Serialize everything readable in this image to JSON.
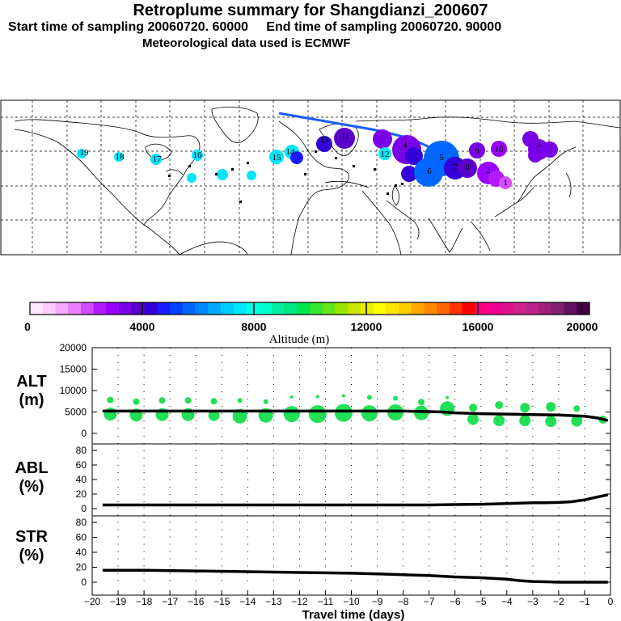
{
  "header": {
    "title": "Retroplume summary for Shangdianzi_200607",
    "start_label": "Start time of sampling 20060720. 60000",
    "end_label": "End time of sampling 20060720. 90000",
    "met_label": "Meteorological data used is ECMWF"
  },
  "colorbar": {
    "label": "Altitude (m)",
    "ticks": [
      "0",
      "4000",
      "8000",
      "12000",
      "16000",
      "20000"
    ],
    "colors": [
      "#ffe6ff",
      "#ffccff",
      "#f4aaff",
      "#e680ff",
      "#d24dff",
      "#b31aff",
      "#9900ff",
      "#7a00e6",
      "#5c00cc",
      "#3300d9",
      "#1a1aff",
      "#0040ff",
      "#0066ff",
      "#0088ff",
      "#00aaff",
      "#00ccff",
      "#00e6ff",
      "#00ffe6",
      "#00ffcc",
      "#00f0a0",
      "#00e680",
      "#00e64d",
      "#33e633",
      "#66e61a",
      "#99e600",
      "#c8e600",
      "#e6f000",
      "#ffff00",
      "#ffe600",
      "#ffcc00",
      "#ffaa00",
      "#ff8800",
      "#ff6600",
      "#ff3300",
      "#ff0000",
      "#ff0080",
      "#f0008c",
      "#e0108c",
      "#d0208c",
      "#c0208c",
      "#a0207c",
      "#80206c",
      "#601060",
      "#400040"
    ]
  },
  "map": {
    "plume_labels": [
      "19",
      "18",
      "17",
      "16",
      "15",
      "14",
      "13",
      "12",
      "11",
      "10",
      "9",
      "8",
      "7",
      "6",
      "5",
      "4",
      "3",
      "2",
      "1"
    ]
  },
  "chart_data": [
    {
      "type": "line",
      "panel": "ALT",
      "ylabel": "ALT (m)",
      "ylabel_line1": "ALT",
      "ylabel_line2": "(m)",
      "ylim": [
        0,
        20000
      ],
      "yticks": [
        0,
        5000,
        10000,
        15000,
        20000
      ],
      "x": [
        -19.6,
        -19,
        -18,
        -17,
        -16,
        -15,
        -14,
        -13,
        -12,
        -11,
        -10,
        -9,
        -8,
        -7,
        -6.5,
        -6,
        -5,
        -4,
        -3,
        -2,
        -1,
        -0.5,
        -0.1
      ],
      "y": [
        5200,
        5200,
        5200,
        5200,
        5200,
        5200,
        5200,
        5200,
        5200,
        5200,
        5200,
        5200,
        5200,
        5100,
        5000,
        4800,
        4600,
        4500,
        4400,
        4300,
        4000,
        3600,
        3000
      ],
      "clusters": [
        {
          "x": -19.3,
          "y": 4500,
          "r": 8
        },
        {
          "x": -19.3,
          "y": 7800,
          "r": 4
        },
        {
          "x": -18.3,
          "y": 4300,
          "r": 8
        },
        {
          "x": -18.3,
          "y": 7400,
          "r": 4
        },
        {
          "x": -17.3,
          "y": 4400,
          "r": 8
        },
        {
          "x": -17.3,
          "y": 7700,
          "r": 4
        },
        {
          "x": -16.3,
          "y": 4400,
          "r": 8
        },
        {
          "x": -16.3,
          "y": 7700,
          "r": 4
        },
        {
          "x": -15.3,
          "y": 4200,
          "r": 7
        },
        {
          "x": -15.3,
          "y": 7500,
          "r": 4
        },
        {
          "x": -14.3,
          "y": 4000,
          "r": 9
        },
        {
          "x": -14.3,
          "y": 7700,
          "r": 3
        },
        {
          "x": -13.3,
          "y": 4200,
          "r": 9
        },
        {
          "x": -13.3,
          "y": 7400,
          "r": 3
        },
        {
          "x": -12.3,
          "y": 4500,
          "r": 10
        },
        {
          "x": -12.3,
          "y": 8500,
          "r": 2
        },
        {
          "x": -11.3,
          "y": 4500,
          "r": 11
        },
        {
          "x": -11.3,
          "y": 8600,
          "r": 2
        },
        {
          "x": -10.3,
          "y": 4800,
          "r": 11
        },
        {
          "x": -10.3,
          "y": 8800,
          "r": 2
        },
        {
          "x": -9.3,
          "y": 4700,
          "r": 10
        },
        {
          "x": -9.3,
          "y": 8400,
          "r": 3
        },
        {
          "x": -8.3,
          "y": 4900,
          "r": 10
        },
        {
          "x": -8.3,
          "y": 8200,
          "r": 3
        },
        {
          "x": -7.3,
          "y": 4800,
          "r": 9
        },
        {
          "x": -7.3,
          "y": 7300,
          "r": 4
        },
        {
          "x": -6.3,
          "y": 5800,
          "r": 9
        },
        {
          "x": -6.3,
          "y": 8400,
          "r": 2
        },
        {
          "x": -5.3,
          "y": 3300,
          "r": 7
        },
        {
          "x": -5.3,
          "y": 6000,
          "r": 5
        },
        {
          "x": -4.3,
          "y": 3000,
          "r": 7
        },
        {
          "x": -4.3,
          "y": 6600,
          "r": 5
        },
        {
          "x": -3.3,
          "y": 3000,
          "r": 7
        },
        {
          "x": -3.3,
          "y": 6000,
          "r": 6
        },
        {
          "x": -2.3,
          "y": 2800,
          "r": 7
        },
        {
          "x": -2.3,
          "y": 6200,
          "r": 6
        },
        {
          "x": -1.3,
          "y": 2900,
          "r": 7
        },
        {
          "x": -1.3,
          "y": 5800,
          "r": 4
        },
        {
          "x": -0.3,
          "y": 3200,
          "r": 5
        }
      ]
    },
    {
      "type": "line",
      "panel": "ABL",
      "ylabel": "ABL (%)",
      "ylabel_line1": "ABL",
      "ylabel_line2": "(%)",
      "ylim": [
        0,
        100
      ],
      "yticks": [
        0,
        20,
        40,
        60,
        80
      ],
      "x": [
        -19.6,
        -18,
        -16,
        -14,
        -12,
        -10,
        -8,
        -7,
        -6,
        -5,
        -4,
        -3,
        -2.5,
        -2,
        -1.5,
        -1,
        -0.5,
        -0.1
      ],
      "y": [
        5,
        5,
        5,
        5,
        5,
        5,
        5,
        5,
        5.5,
        6,
        7,
        8,
        8,
        8.5,
        9.5,
        12,
        16,
        19
      ]
    },
    {
      "type": "line",
      "panel": "STR",
      "ylabel": "STR (%)",
      "ylabel_line1": "STR",
      "ylabel_line2": "(%)",
      "ylim": [
        0,
        100
      ],
      "yticks": [
        0,
        20,
        40,
        60,
        80
      ],
      "x": [
        -19.6,
        -18,
        -16,
        -14,
        -12,
        -10,
        -9,
        -8,
        -7,
        -6,
        -5,
        -4,
        -3.5,
        -3,
        -2.5,
        -2,
        -1,
        -0.1
      ],
      "y": [
        16,
        16,
        15,
        14,
        13,
        12,
        11,
        10,
        9,
        7,
        6,
        4,
        2,
        1,
        0.5,
        0,
        0,
        0
      ],
      "xlabel": "Travel time (days)",
      "xlim": [
        -20,
        0
      ],
      "xticks": [
        -20,
        -19,
        -18,
        -17,
        -16,
        -15,
        -14,
        -13,
        -12,
        -11,
        -10,
        -9,
        -8,
        -7,
        -6,
        -5,
        -4,
        -3,
        -2,
        -1,
        0
      ]
    }
  ]
}
